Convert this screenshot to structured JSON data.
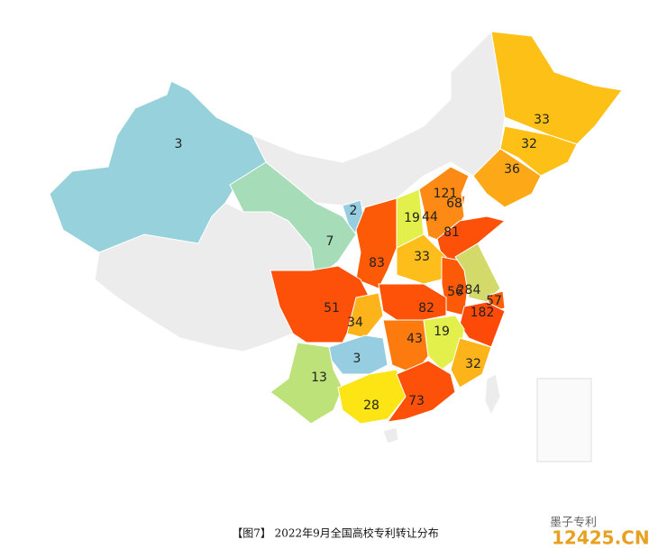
{
  "caption": "【图7】 2022年9月全国高校专利转让分布",
  "watermark": {
    "brand": "墨子专利",
    "site": "12425.CN"
  },
  "regions": [
    {
      "value": 3,
      "color": "#96d1dc"
    },
    {
      "value": 33,
      "color": "#fcc016"
    },
    {
      "value": 32,
      "color": "#fcc016"
    },
    {
      "value": 36,
      "color": "#fca817"
    },
    {
      "value": 121,
      "color": "#fd6a0a"
    },
    {
      "value": 68,
      "color": "#fd6a0a"
    },
    {
      "value": 2,
      "color": "#96cde0"
    },
    {
      "value": 19,
      "color": "#e3ef4a"
    },
    {
      "value": 44,
      "color": "#fd8a14"
    },
    {
      "value": 81,
      "color": "#fd5008"
    },
    {
      "value": 7,
      "color": "#a6dcb7"
    },
    {
      "value": 83,
      "color": "#fd5a08"
    },
    {
      "value": 33,
      "color": "#fdbd1a"
    },
    {
      "value": 56,
      "color": "#fd5a08"
    },
    {
      "value": 284,
      "color": "#d4da6a"
    },
    {
      "value": 57,
      "color": "#fd6008"
    },
    {
      "value": 51,
      "color": "#fd5008"
    },
    {
      "value": 82,
      "color": "#fd5208"
    },
    {
      "value": 182,
      "color": "#fd4a08"
    },
    {
      "value": 34,
      "color": "#fdb41a"
    },
    {
      "value": 43,
      "color": "#fd7a0e"
    },
    {
      "value": 19,
      "color": "#e3ef4a"
    },
    {
      "value": 3,
      "color": "#96cde0"
    },
    {
      "value": 32,
      "color": "#fdb41a"
    },
    {
      "value": 13,
      "color": "#bde27a"
    },
    {
      "value": 28,
      "color": "#fde414"
    },
    {
      "value": 73,
      "color": "#fd5008"
    }
  ]
}
